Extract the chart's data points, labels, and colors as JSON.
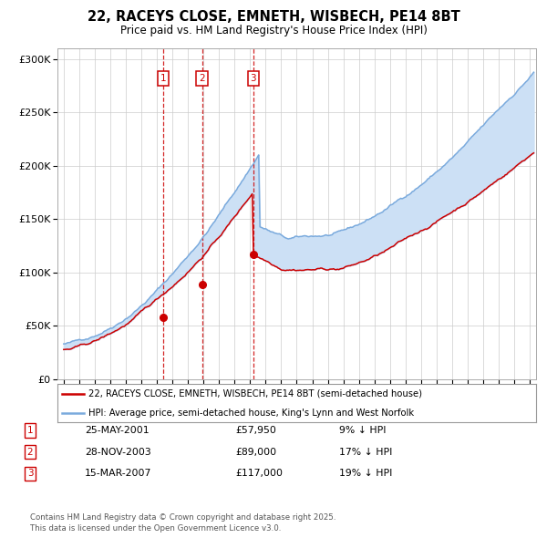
{
  "title_line1": "22, RACEYS CLOSE, EMNETH, WISBECH, PE14 8BT",
  "title_line2": "Price paid vs. HM Land Registry's House Price Index (HPI)",
  "legend_label_red": "22, RACEYS CLOSE, EMNETH, WISBECH, PE14 8BT (semi-detached house)",
  "legend_label_blue": "HPI: Average price, semi-detached house, King's Lynn and West Norfolk",
  "footnote": "Contains HM Land Registry data © Crown copyright and database right 2025.\nThis data is licensed under the Open Government Licence v3.0.",
  "transactions": [
    {
      "label": "1",
      "date": "25-MAY-2001",
      "price": 57950,
      "price_str": "£57,950",
      "hpi_pct": "9% ↓ HPI",
      "x_year": 2001.4
    },
    {
      "label": "2",
      "date": "28-NOV-2003",
      "price": 89000,
      "price_str": "£89,000",
      "hpi_pct": "17% ↓ HPI",
      "x_year": 2003.9
    },
    {
      "label": "3",
      "date": "15-MAR-2007",
      "price": 117000,
      "price_str": "£117,000",
      "hpi_pct": "19% ↓ HPI",
      "x_year": 2007.2
    }
  ],
  "red_color": "#cc0000",
  "blue_color": "#7aaadd",
  "shaded_color": "#cce0f5",
  "vline_color": "#cc0000",
  "box_color": "#cc0000",
  "grid_color": "#cccccc",
  "background_color": "#ffffff",
  "ylim": [
    0,
    310000
  ],
  "xlim_start": 1994.6,
  "xlim_end": 2025.4,
  "yticks": [
    0,
    50000,
    100000,
    150000,
    200000,
    250000,
    300000
  ],
  "ylabels": [
    "£0",
    "£50K",
    "£100K",
    "£150K",
    "£200K",
    "£250K",
    "£300K"
  ]
}
